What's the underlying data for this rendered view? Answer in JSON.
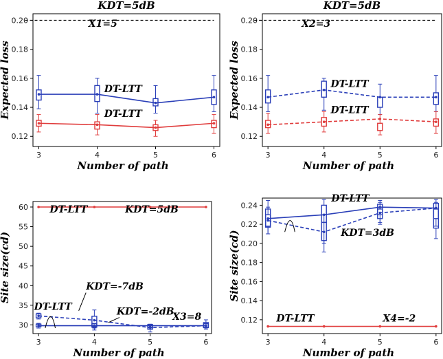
{
  "colors": {
    "blue": "#2a3fb8",
    "red": "#e03c3c",
    "black": "#000000"
  },
  "chart_data": [
    {
      "type": "line",
      "title": "KDT=5dB",
      "xlabel": "Number of path",
      "ylabel": "Expected loss",
      "x": [
        3,
        4,
        5,
        6
      ],
      "xlim": [
        2.9,
        6.1
      ],
      "ylim": [
        0.113,
        0.2045
      ],
      "yticks": [
        "0.12",
        "0.14",
        "0.16",
        "0.18",
        "0.20"
      ],
      "reference": {
        "value": 0.2,
        "style": "dashed",
        "color": "black"
      },
      "series": [
        {
          "color": "blue",
          "style": "solid",
          "values": [
            0.149,
            0.149,
            0.143,
            0.147
          ],
          "boxes": [
            [
              0.145,
              0.152,
              0.139,
              0.162
            ],
            [
              0.144,
              0.155,
              0.136,
              0.16
            ],
            [
              0.141,
              0.146,
              0.136,
              0.155
            ],
            [
              0.142,
              0.152,
              0.137,
              0.162
            ]
          ]
        },
        {
          "color": "red",
          "style": "solid",
          "values": [
            0.129,
            0.128,
            0.126,
            0.129
          ],
          "boxes": [
            [
              0.127,
              0.131,
              0.123,
              0.135
            ],
            [
              0.125,
              0.13,
              0.121,
              0.135
            ],
            [
              0.124,
              0.128,
              0.12,
              0.131
            ],
            [
              0.126,
              0.131,
              0.122,
              0.135
            ]
          ]
        }
      ],
      "annotations": [
        {
          "text": "X1=5",
          "x": 3.85,
          "y": 0.1955
        },
        {
          "text": "DT-LTT",
          "x": 4.12,
          "y": 0.1505
        },
        {
          "text": "DT-LTT",
          "x": 4.12,
          "y": 0.1335
        }
      ]
    },
    {
      "type": "line",
      "title": "KDT=5dB",
      "xlabel": "Number of path",
      "ylabel": "Expected loss",
      "x": [
        3,
        4,
        5,
        6
      ],
      "xlim": [
        2.9,
        6.1
      ],
      "ylim": [
        0.113,
        0.2045
      ],
      "yticks": [
        "0.12",
        "0.14",
        "0.16",
        "0.18",
        "0.20"
      ],
      "reference": {
        "value": 0.2,
        "style": "dashed",
        "color": "black"
      },
      "series": [
        {
          "color": "blue",
          "style": "dashed",
          "values": [
            0.147,
            0.152,
            0.147,
            0.147
          ],
          "boxes": [
            [
              0.143,
              0.152,
              0.137,
              0.162
            ],
            [
              0.147,
              0.158,
              0.138,
              0.16
            ],
            [
              0.14,
              0.147,
              0.135,
              0.156
            ],
            [
              0.142,
              0.15,
              0.137,
              0.162
            ]
          ]
        },
        {
          "color": "red",
          "style": "dashed",
          "values": [
            0.128,
            0.13,
            0.132,
            0.13
          ],
          "boxes": [
            [
              0.126,
              0.131,
              0.122,
              0.136
            ],
            [
              0.127,
              0.133,
              0.123,
              0.137
            ],
            [
              0.124,
              0.129,
              0.121,
              0.135
            ],
            [
              0.127,
              0.132,
              0.122,
              0.137
            ]
          ]
        }
      ],
      "annotations": [
        {
          "text": "X2=3",
          "x": 3.6,
          "y": 0.1955
        },
        {
          "text": "DT-LTT",
          "x": 4.12,
          "y": 0.154
        },
        {
          "text": "DT-LTT",
          "x": 4.12,
          "y": 0.136
        }
      ]
    },
    {
      "type": "line",
      "title": "",
      "xlabel": "Number of path",
      "ylabel": "Site size(cd)",
      "x": [
        3,
        4,
        5,
        6
      ],
      "xlim": [
        2.9,
        6.1
      ],
      "ylim": [
        27.8,
        61.4
      ],
      "yticks": [
        "30",
        "35",
        "40",
        "45",
        "50",
        "55",
        "60"
      ],
      "series": [
        {
          "color": "red",
          "style": "solid",
          "values": [
            60,
            60,
            60,
            60
          ],
          "boxes": []
        },
        {
          "color": "blue",
          "style": "solid",
          "values": [
            29.8,
            29.8,
            29.8,
            29.8
          ],
          "boxes": [
            [
              29.5,
              30.2,
              29.2,
              30.4
            ],
            [
              29.4,
              30.3,
              29.2,
              30.4
            ],
            [
              29.4,
              30,
              29.2,
              30.1
            ],
            [
              29.4,
              30.3,
              29.2,
              30.4
            ]
          ]
        },
        {
          "color": "blue",
          "style": "dashed",
          "values": [
            32.3,
            31.2,
            29.3,
            29.8
          ],
          "boxes": [
            [
              31.8,
              32.8,
              31.5,
              33
            ],
            [
              29.6,
              32.2,
              28.7,
              33.8
            ],
            [
              28.9,
              30.1,
              28.2,
              30.2
            ],
            [
              29.3,
              30.6,
              28.9,
              31.3
            ]
          ]
        }
      ],
      "annotations": [
        {
          "text": "DT-LTT",
          "x": 3.2,
          "y": 58.6
        },
        {
          "text": "KDT=5dB",
          "x": 4.55,
          "y": 58.6
        },
        {
          "text": "DT-LTT",
          "x": 2.92,
          "y": 33.8
        },
        {
          "text": "KDT=-7dB",
          "x": 3.85,
          "y": 39.0
        },
        {
          "text": "KDT=-2dB",
          "x": 4.4,
          "y": 32.6
        },
        {
          "text": "X3=8",
          "x": 5.4,
          "y": 31.3
        }
      ]
    },
    {
      "type": "line",
      "title": "",
      "xlabel": "Number of path",
      "ylabel": "Site size(cd)",
      "x": [
        3,
        4,
        5,
        6
      ],
      "xlim": [
        2.9,
        6.1
      ],
      "ylim": [
        0.1055,
        0.2475
      ],
      "yticks": [
        "0.12",
        "0.14",
        "0.16",
        "0.18",
        "0.20",
        "0.22",
        "0.24"
      ],
      "series": [
        {
          "color": "blue",
          "style": "solid",
          "values": [
            0.226,
            0.23,
            0.238,
            0.237
          ],
          "boxes": [
            [
              0.218,
              0.236,
              0.21,
              0.245
            ],
            [
              0.222,
              0.24,
              0.2,
              0.246
            ],
            [
              0.23,
              0.241,
              0.222,
              0.245
            ],
            [
              0.226,
              0.242,
              0.218,
              0.246
            ]
          ]
        },
        {
          "color": "blue",
          "style": "dashed",
          "values": [
            0.224,
            0.212,
            0.232,
            0.237
          ],
          "boxes": [
            [
              0.217,
              0.23,
              0.21,
              0.238
            ],
            [
              0.203,
              0.222,
              0.191,
              0.23
            ],
            [
              0.226,
              0.236,
              0.22,
              0.243
            ],
            [
              0.216,
              0.236,
              0.205,
              0.243
            ]
          ]
        },
        {
          "color": "red",
          "style": "solid",
          "values": [
            0.113,
            0.113,
            0.113,
            0.113
          ],
          "boxes": []
        }
      ],
      "annotations": [
        {
          "text": "DT-LTT",
          "x": 4.13,
          "y": 0.244
        },
        {
          "text": "KDT=3dB",
          "x": 4.3,
          "y": 0.208
        },
        {
          "text": "DT-LTT",
          "x": 3.15,
          "y": 0.118
        },
        {
          "text": "X4=-2",
          "x": 5.05,
          "y": 0.118
        }
      ]
    }
  ]
}
